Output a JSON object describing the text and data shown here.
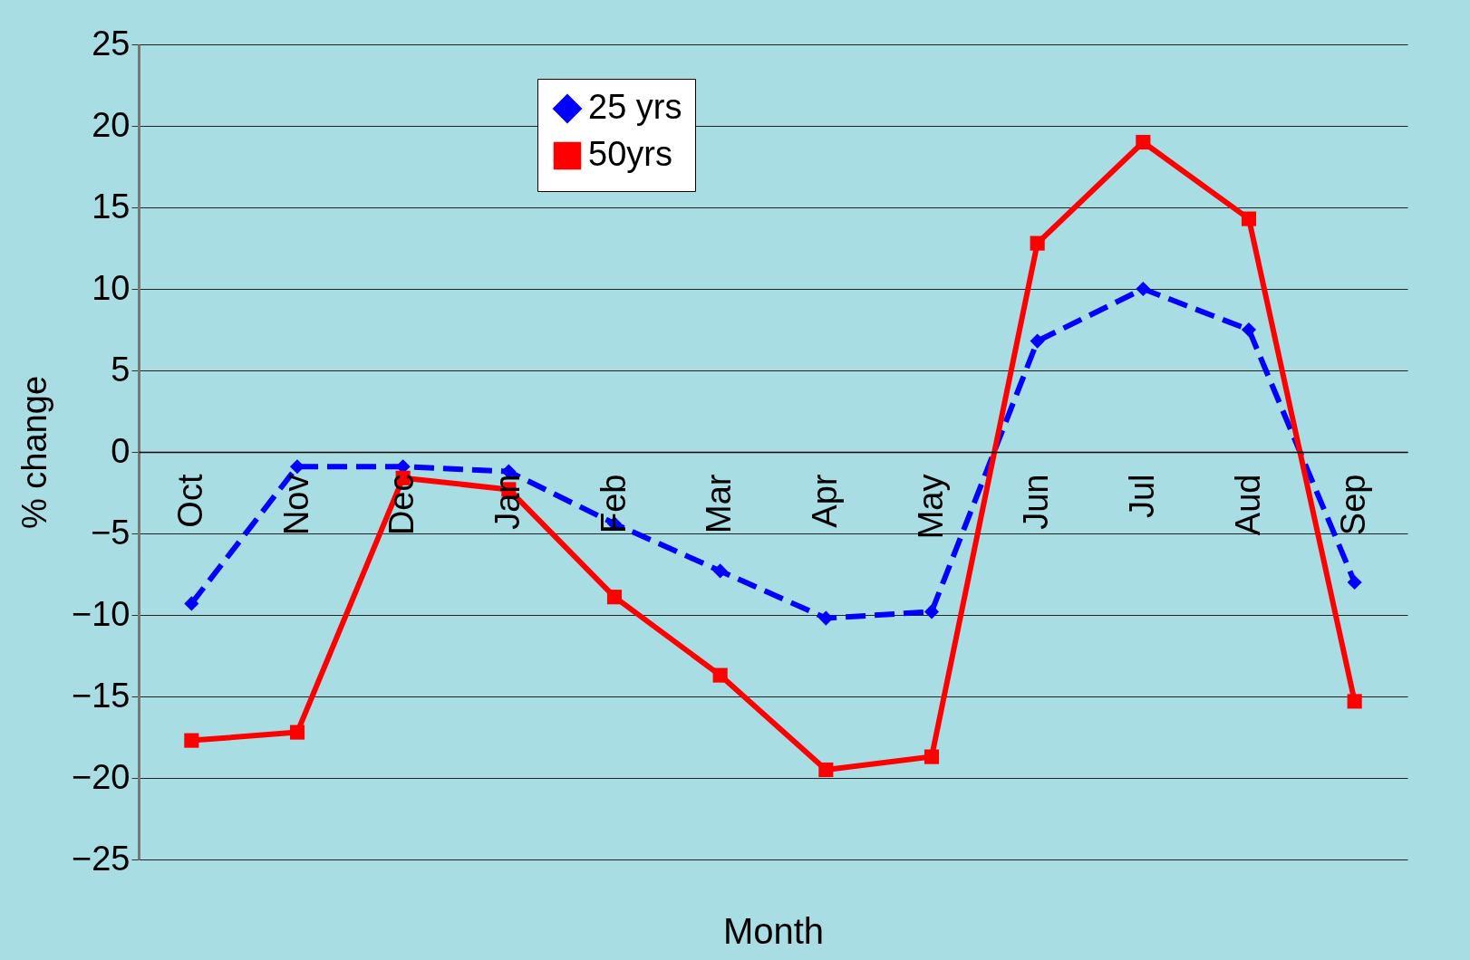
{
  "chart_data": {
    "type": "line",
    "xlabel": "Month",
    "ylabel": "% change",
    "categories": [
      "Oct",
      "Nov",
      "Dec",
      "Jan",
      "Feb",
      "Mar",
      "Apr",
      "May",
      "Jun",
      "Jul",
      "Aud",
      "Sep"
    ],
    "series": [
      {
        "name": "25 yrs",
        "color": "#0000ff",
        "marker": "diamond",
        "line_style": "dashed",
        "values": [
          -9.3,
          -0.9,
          -0.9,
          -1.2,
          -4.4,
          -7.3,
          -10.2,
          -9.8,
          6.8,
          10.0,
          7.5,
          -8.0
        ]
      },
      {
        "name": "50yrs",
        "color": "#ff0000",
        "marker": "square",
        "line_style": "solid",
        "values": [
          -17.7,
          -17.2,
          -1.6,
          -2.3,
          -8.9,
          -13.7,
          -19.5,
          -18.7,
          12.8,
          19.0,
          14.3,
          -15.3
        ]
      }
    ],
    "ylim": [
      -25,
      25
    ],
    "yticks": [
      -25,
      -20,
      -15,
      -10,
      -5,
      0,
      5,
      10,
      15,
      20,
      25
    ],
    "grid": "y",
    "legend": "top left"
  }
}
